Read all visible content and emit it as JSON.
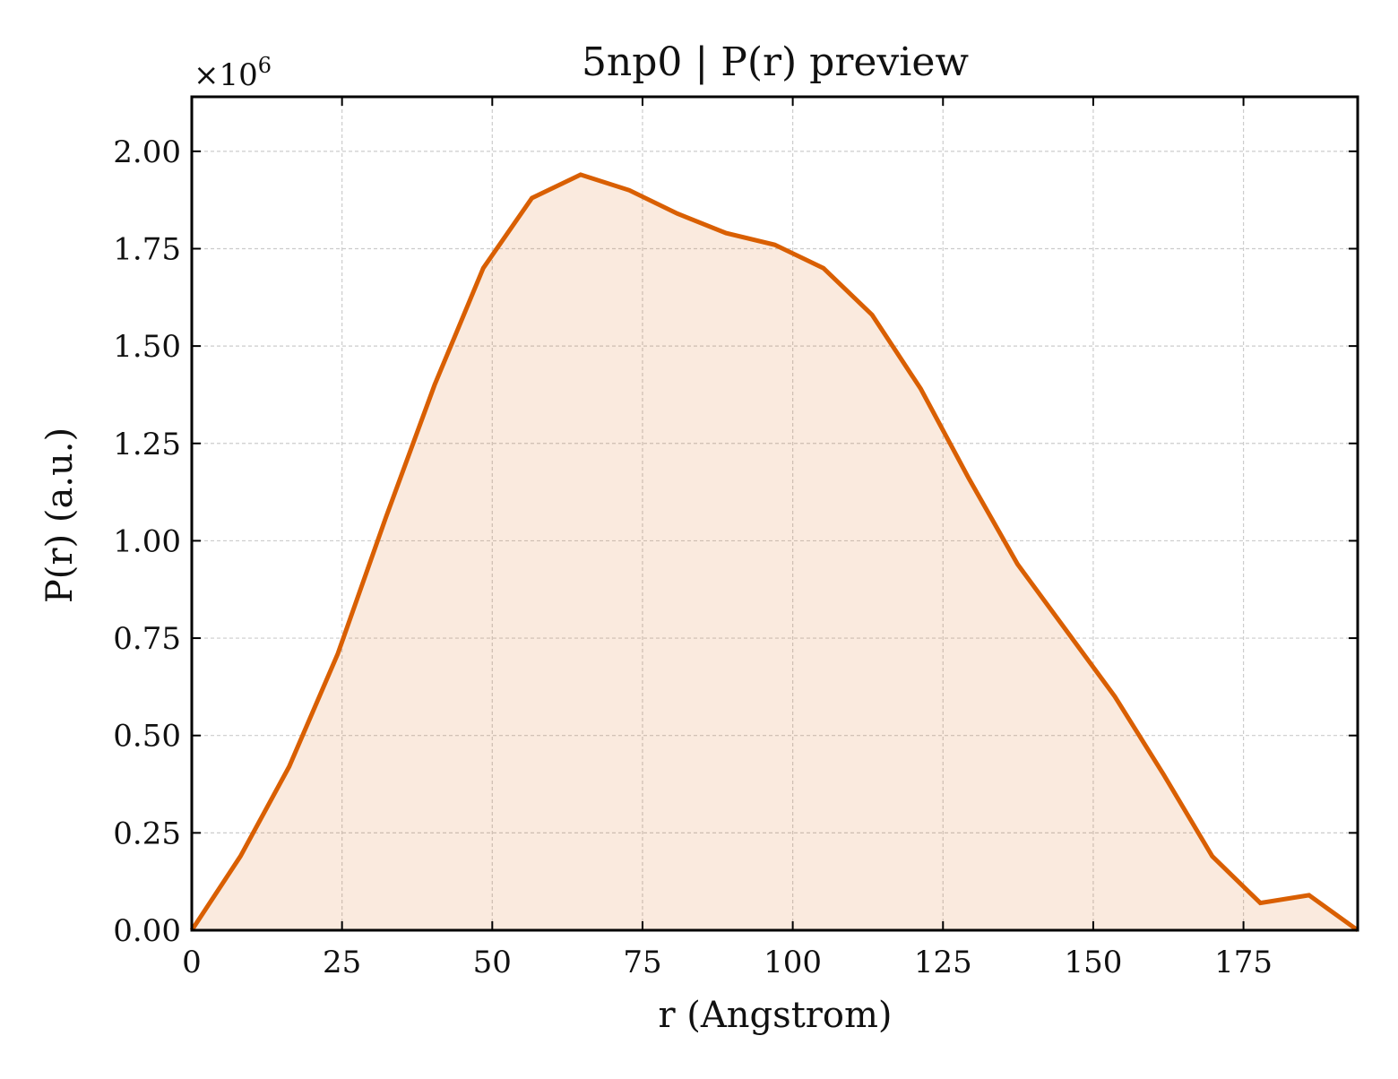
{
  "chart_data": {
    "type": "area",
    "title": "5np0 | P(r) preview",
    "xlabel": "r (Angstrom)",
    "ylabel": "P(r) (a.u.)",
    "y_multiplier_base": "×10",
    "y_multiplier_exp": "6",
    "xlim": [
      0,
      194
    ],
    "ylim": [
      0,
      2.14
    ],
    "y_scale_factor": 1000000,
    "grid": true,
    "x_ticks": [
      0,
      25,
      50,
      75,
      100,
      125,
      150,
      175
    ],
    "x_tick_labels": [
      "0",
      "25",
      "50",
      "75",
      "100",
      "125",
      "150",
      "175"
    ],
    "y_ticks": [
      0,
      0.25,
      0.5,
      0.75,
      1.0,
      1.25,
      1.5,
      1.75,
      2.0
    ],
    "y_tick_labels": [
      "0.00",
      "0.25",
      "0.50",
      "0.75",
      "1.00",
      "1.25",
      "1.50",
      "1.75",
      "2.00"
    ],
    "series": [
      {
        "x": [
          0,
          8.1,
          16.2,
          24.3,
          32.3,
          40.4,
          48.5,
          56.6,
          64.7,
          72.8,
          80.8,
          88.9,
          97.0,
          105.1,
          113.2,
          121.3,
          129.3,
          137.4,
          145.5,
          153.6,
          161.7,
          169.8,
          177.8,
          185.9,
          194.0
        ],
        "y": [
          0.0,
          0.19,
          0.42,
          0.71,
          1.06,
          1.4,
          1.7,
          1.88,
          1.94,
          1.9,
          1.84,
          1.79,
          1.76,
          1.7,
          1.58,
          1.39,
          1.16,
          0.94,
          0.77,
          0.6,
          0.4,
          0.19,
          0.07,
          0.09,
          0.0
        ],
        "color": "#d95f02"
      }
    ]
  }
}
